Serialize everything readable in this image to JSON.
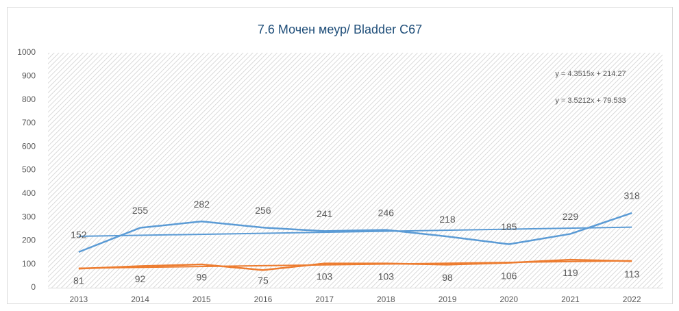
{
  "chart_data": {
    "type": "line",
    "title": "7.6 Мочен меур/ Bladder C67",
    "categories": [
      "2013",
      "2014",
      "2015",
      "2016",
      "2017",
      "2018",
      "2019",
      "2020",
      "2021",
      "2022"
    ],
    "series": [
      {
        "color": "#5b9bd5",
        "values": [
          152,
          255,
          282,
          256,
          241,
          246,
          218,
          185,
          229,
          318
        ]
      },
      {
        "color": "#ed7d31",
        "values": [
          81,
          92,
          99,
          75,
          103,
          103,
          98,
          106,
          119,
          113
        ]
      }
    ],
    "trendline": true,
    "annotations": [
      "y = 4.3515x + 214.27",
      "y = 3.5212x + 79.533"
    ],
    "ylim": [
      0,
      1000
    ],
    "yticks": [
      0,
      100,
      200,
      300,
      400,
      500,
      600,
      700,
      800,
      900,
      1000
    ],
    "grid": false
  }
}
